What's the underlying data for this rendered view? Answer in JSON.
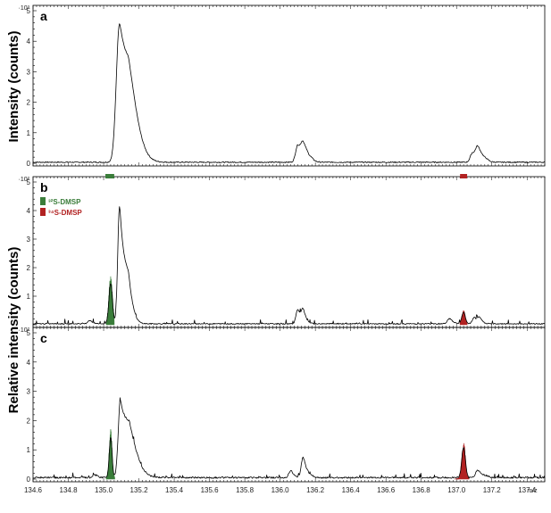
{
  "chart_data": {
    "type": "line",
    "shared_x_axis": {
      "xlabel": "m/z",
      "xlim": [
        134.6,
        137.5
      ],
      "tick_labels": [
        "134.6",
        "134.8",
        "135.0",
        "135.2",
        "135.4",
        "135.6",
        "135.8",
        "136.0",
        "136.2",
        "136.4",
        "136.6",
        "136.8",
        "137.0",
        "137.2",
        "137.4"
      ]
    },
    "ylabels": {
      "top": "Intensity (counts)",
      "bottom": "Relative intensity (counts)"
    },
    "colors": {
      "s32_dmsp": "#3a7d3a",
      "s34_dmsp": "#b22222",
      "trace": "#000000"
    },
    "panels": [
      {
        "letter": "a",
        "scale_label": "·10³",
        "ylim": [
          0,
          5
        ],
        "yticks": [
          "0",
          "1",
          "2",
          "3",
          "4",
          "5"
        ],
        "peaks": [
          {
            "mz": 135.09,
            "height": 4.55,
            "width": 0.018,
            "tail": 0.05
          },
          {
            "mz": 136.1,
            "height": 0.55,
            "width": 0.012,
            "tail": 0.02
          },
          {
            "mz": 136.13,
            "height": 0.45,
            "width": 0.012,
            "tail": 0.02
          },
          {
            "mz": 137.09,
            "height": 0.3,
            "width": 0.012,
            "tail": 0.02
          },
          {
            "mz": 137.12,
            "height": 0.4,
            "width": 0.012,
            "tail": 0.02
          }
        ],
        "baseline": 0.04
      },
      {
        "letter": "b",
        "scale_label": "·10²",
        "ylim": [
          0,
          5
        ],
        "yticks": [
          "1",
          "2",
          "3",
          "4",
          "5"
        ],
        "legend": [
          {
            "label": "³²S-DMSP",
            "color": "#3a7d3a"
          },
          {
            "label": "³⁴S-DMSP",
            "color": "#b22222"
          }
        ],
        "markers": [
          {
            "from": 135.01,
            "to": 135.06,
            "color": "#3a7d3a"
          },
          {
            "from": 137.02,
            "to": 137.06,
            "color": "#b22222"
          }
        ],
        "filled": [
          {
            "mz": 135.04,
            "height": 1.55,
            "width": 0.01,
            "color": "#3a7d3a",
            "from": 135.015,
            "to": 135.06
          },
          {
            "mz": 137.04,
            "height": 0.45,
            "width": 0.01,
            "color": "#b22222",
            "from": 137.02,
            "to": 137.06
          }
        ],
        "peaks": [
          {
            "mz": 135.09,
            "height": 4.1,
            "width": 0.01,
            "tail": 0.03
          },
          {
            "mz": 136.1,
            "height": 0.5,
            "width": 0.01,
            "tail": 0.01
          },
          {
            "mz": 136.13,
            "height": 0.45,
            "width": 0.01,
            "tail": 0.01
          },
          {
            "mz": 136.96,
            "height": 0.18,
            "width": 0.012,
            "tail": 0.01
          },
          {
            "mz": 137.1,
            "height": 0.22,
            "width": 0.01,
            "tail": 0.01
          },
          {
            "mz": 137.13,
            "height": 0.2,
            "width": 0.01,
            "tail": 0.01
          },
          {
            "mz": 134.92,
            "height": 0.12,
            "width": 0.01,
            "tail": 0.01
          }
        ],
        "baseline": 0.04
      },
      {
        "letter": "c",
        "scale_label": "·10²",
        "ylim": [
          0,
          5
        ],
        "yticks": [
          "0",
          "1",
          "2",
          "3",
          "4",
          "5"
        ],
        "filled": [
          {
            "mz": 135.04,
            "height": 1.55,
            "width": 0.008,
            "color": "#3a7d3a",
            "from": 135.015,
            "to": 135.065
          },
          {
            "mz": 137.04,
            "height": 1.15,
            "width": 0.01,
            "color": "#b22222",
            "from": 136.99,
            "to": 137.07
          }
        ],
        "peaks": [
          {
            "mz": 135.095,
            "height": 2.65,
            "width": 0.012,
            "tail": 0.05
          },
          {
            "mz": 136.13,
            "height": 0.7,
            "width": 0.01,
            "tail": 0.015
          },
          {
            "mz": 136.06,
            "height": 0.25,
            "width": 0.01,
            "tail": 0.01
          },
          {
            "mz": 137.12,
            "height": 0.25,
            "width": 0.012,
            "tail": 0.02
          },
          {
            "mz": 134.95,
            "height": 0.1,
            "width": 0.01,
            "tail": 0.01
          }
        ],
        "baseline": 0.06
      }
    ]
  }
}
